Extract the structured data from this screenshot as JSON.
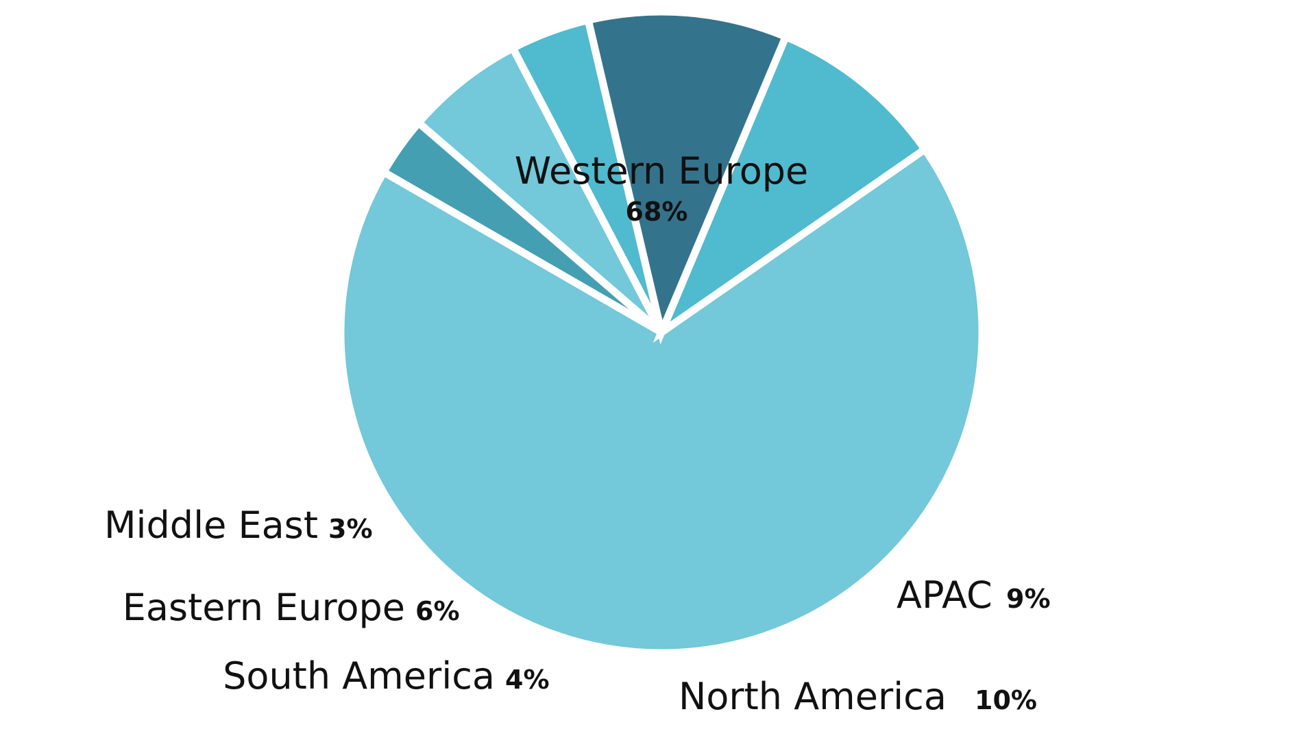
{
  "chart_data": {
    "type": "pie",
    "slices": [
      {
        "label": "Western Europe",
        "value": 68,
        "value_label": "68%",
        "color": "#73c8da"
      },
      {
        "label": "APAC",
        "value": 9,
        "value_label": "9%",
        "color": "#50bace"
      },
      {
        "label": "North America",
        "value": 10,
        "value_label": "10%",
        "color": "#34738c"
      },
      {
        "label": "South America",
        "value": 4,
        "value_label": "4%",
        "color": "#50bace"
      },
      {
        "label": "Eastern Europe",
        "value": 6,
        "value_label": "6%",
        "color": "#73c8da"
      },
      {
        "label": "Middle East",
        "value": 3,
        "value_label": "3%",
        "color": "#459fb3"
      }
    ],
    "separator_color": "#ffffff",
    "legend": "none"
  }
}
